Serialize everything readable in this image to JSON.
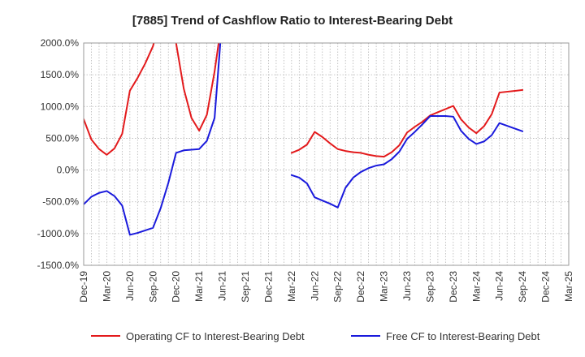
{
  "chart_data": {
    "type": "line",
    "title": "[7885]  Trend of Cashflow Ratio to Interest-Bearing Debt",
    "xlabel": "",
    "ylabel": "",
    "ylim": [
      -1500,
      2000
    ],
    "yticks": [
      2000,
      1500,
      1000,
      500,
      0,
      -500,
      -1000,
      -1500
    ],
    "ytick_labels": [
      "2000.0%",
      "1500.0%",
      "1000.0%",
      "500.0%",
      "0.0%",
      "-500.0%",
      "-1000.0%",
      "-1500.0%"
    ],
    "x_range": [
      "2019-12",
      "2025-03"
    ],
    "xtick_labels": [
      "Dec-19",
      "Mar-20",
      "Jun-20",
      "Sep-20",
      "Dec-20",
      "Mar-21",
      "Jun-21",
      "Sep-21",
      "Dec-21",
      "Mar-22",
      "Jun-22",
      "Sep-22",
      "Dec-22",
      "Mar-23",
      "Jun-23",
      "Sep-23",
      "Dec-23",
      "Mar-24",
      "Jun-24",
      "Sep-24",
      "Dec-24",
      "Mar-25"
    ],
    "grid": true,
    "legend_position": "bottom",
    "series": [
      {
        "name": "Operating CF to Interest-Bearing Debt",
        "color": "#e31a1c",
        "points": [
          [
            "2019-12",
            800
          ],
          [
            "2020-01",
            480
          ],
          [
            "2020-02",
            330
          ],
          [
            "2020-03",
            240
          ],
          [
            "2020-04",
            340
          ],
          [
            "2020-05",
            570
          ],
          [
            "2020-06",
            1250
          ],
          [
            "2020-07",
            1450
          ],
          [
            "2020-08",
            1680
          ],
          [
            "2020-09",
            1950
          ],
          [
            "2020-10",
            2400
          ],
          [
            "2020-11",
            2400
          ],
          [
            "2020-12",
            2000
          ],
          [
            "2021-01",
            1280
          ],
          [
            "2021-02",
            820
          ],
          [
            "2021-03",
            620
          ],
          [
            "2021-04",
            870
          ],
          [
            "2021-05",
            1550
          ],
          [
            "2021-06",
            2400
          ],
          null,
          [
            "2022-03",
            270
          ],
          [
            "2022-04",
            320
          ],
          [
            "2022-05",
            400
          ],
          [
            "2022-06",
            600
          ],
          [
            "2022-07",
            520
          ],
          [
            "2022-08",
            420
          ],
          [
            "2022-09",
            330
          ],
          [
            "2022-10",
            300
          ],
          [
            "2022-11",
            280
          ],
          [
            "2022-12",
            270
          ],
          [
            "2023-01",
            240
          ],
          [
            "2023-02",
            220
          ],
          [
            "2023-03",
            210
          ],
          [
            "2023-04",
            280
          ],
          [
            "2023-05",
            390
          ],
          [
            "2023-06",
            590
          ],
          [
            "2023-07",
            680
          ],
          [
            "2023-08",
            760
          ],
          [
            "2023-09",
            860
          ],
          [
            "2023-10",
            910
          ],
          [
            "2023-11",
            960
          ],
          [
            "2023-12",
            1010
          ],
          [
            "2024-01",
            800
          ],
          [
            "2024-02",
            670
          ],
          [
            "2024-03",
            580
          ],
          [
            "2024-04",
            690
          ],
          [
            "2024-05",
            880
          ],
          [
            "2024-06",
            1220
          ],
          [
            "2024-09",
            1260
          ]
        ]
      },
      {
        "name": "Free CF to Interest-Bearing Debt",
        "color": "#1a1adc",
        "points": [
          [
            "2019-12",
            -540
          ],
          [
            "2020-01",
            -420
          ],
          [
            "2020-02",
            -360
          ],
          [
            "2020-03",
            -330
          ],
          [
            "2020-04",
            -410
          ],
          [
            "2020-05",
            -560
          ],
          [
            "2020-06",
            -1020
          ],
          [
            "2020-07",
            -990
          ],
          [
            "2020-08",
            -950
          ],
          [
            "2020-09",
            -910
          ],
          [
            "2020-10",
            -600
          ],
          [
            "2020-11",
            -200
          ],
          [
            "2020-12",
            270
          ],
          [
            "2021-01",
            310
          ],
          [
            "2021-02",
            320
          ],
          [
            "2021-03",
            330
          ],
          [
            "2021-04",
            460
          ],
          [
            "2021-05",
            820
          ],
          [
            "2021-06",
            2400
          ],
          null,
          [
            "2022-03",
            -80
          ],
          [
            "2022-04",
            -120
          ],
          [
            "2022-05",
            -210
          ],
          [
            "2022-06",
            -430
          ],
          [
            "2022-07",
            -480
          ],
          [
            "2022-08",
            -530
          ],
          [
            "2022-09",
            -590
          ],
          [
            "2022-10",
            -280
          ],
          [
            "2022-11",
            -120
          ],
          [
            "2022-12",
            -30
          ],
          [
            "2023-01",
            30
          ],
          [
            "2023-02",
            70
          ],
          [
            "2023-03",
            90
          ],
          [
            "2023-04",
            170
          ],
          [
            "2023-05",
            290
          ],
          [
            "2023-06",
            490
          ],
          [
            "2023-07",
            600
          ],
          [
            "2023-08",
            720
          ],
          [
            "2023-09",
            850
          ],
          [
            "2023-10",
            850
          ],
          [
            "2023-11",
            850
          ],
          [
            "2023-12",
            840
          ],
          [
            "2024-01",
            620
          ],
          [
            "2024-02",
            490
          ],
          [
            "2024-03",
            410
          ],
          [
            "2024-04",
            450
          ],
          [
            "2024-05",
            550
          ],
          [
            "2024-06",
            740
          ],
          [
            "2024-09",
            610
          ]
        ]
      }
    ]
  }
}
